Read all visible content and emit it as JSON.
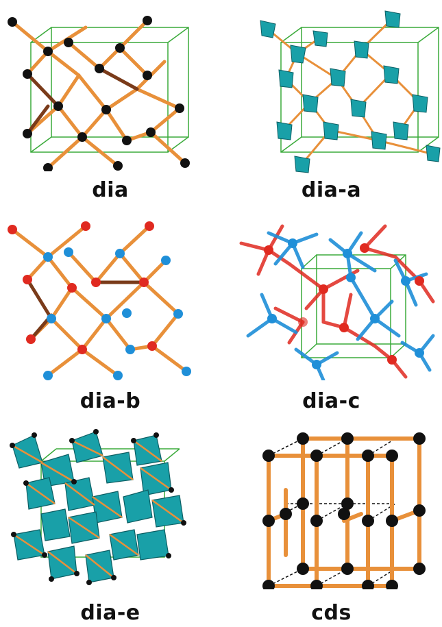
{
  "panels": [
    {
      "label": "dia"
    },
    {
      "label": "dia-a"
    },
    {
      "label": "dia-b"
    },
    {
      "label": "dia-c"
    },
    {
      "label": "dia-e"
    },
    {
      "label": "cds"
    }
  ],
  "colors": {
    "bond": "#e8903a",
    "bond_dark": "#7a3b1a",
    "node_black": "#111111",
    "node_red": "#e02a20",
    "node_blue": "#1f8fd8",
    "tetrahedron": "#19a0a8",
    "cell_edge": "#3aaa3a"
  }
}
